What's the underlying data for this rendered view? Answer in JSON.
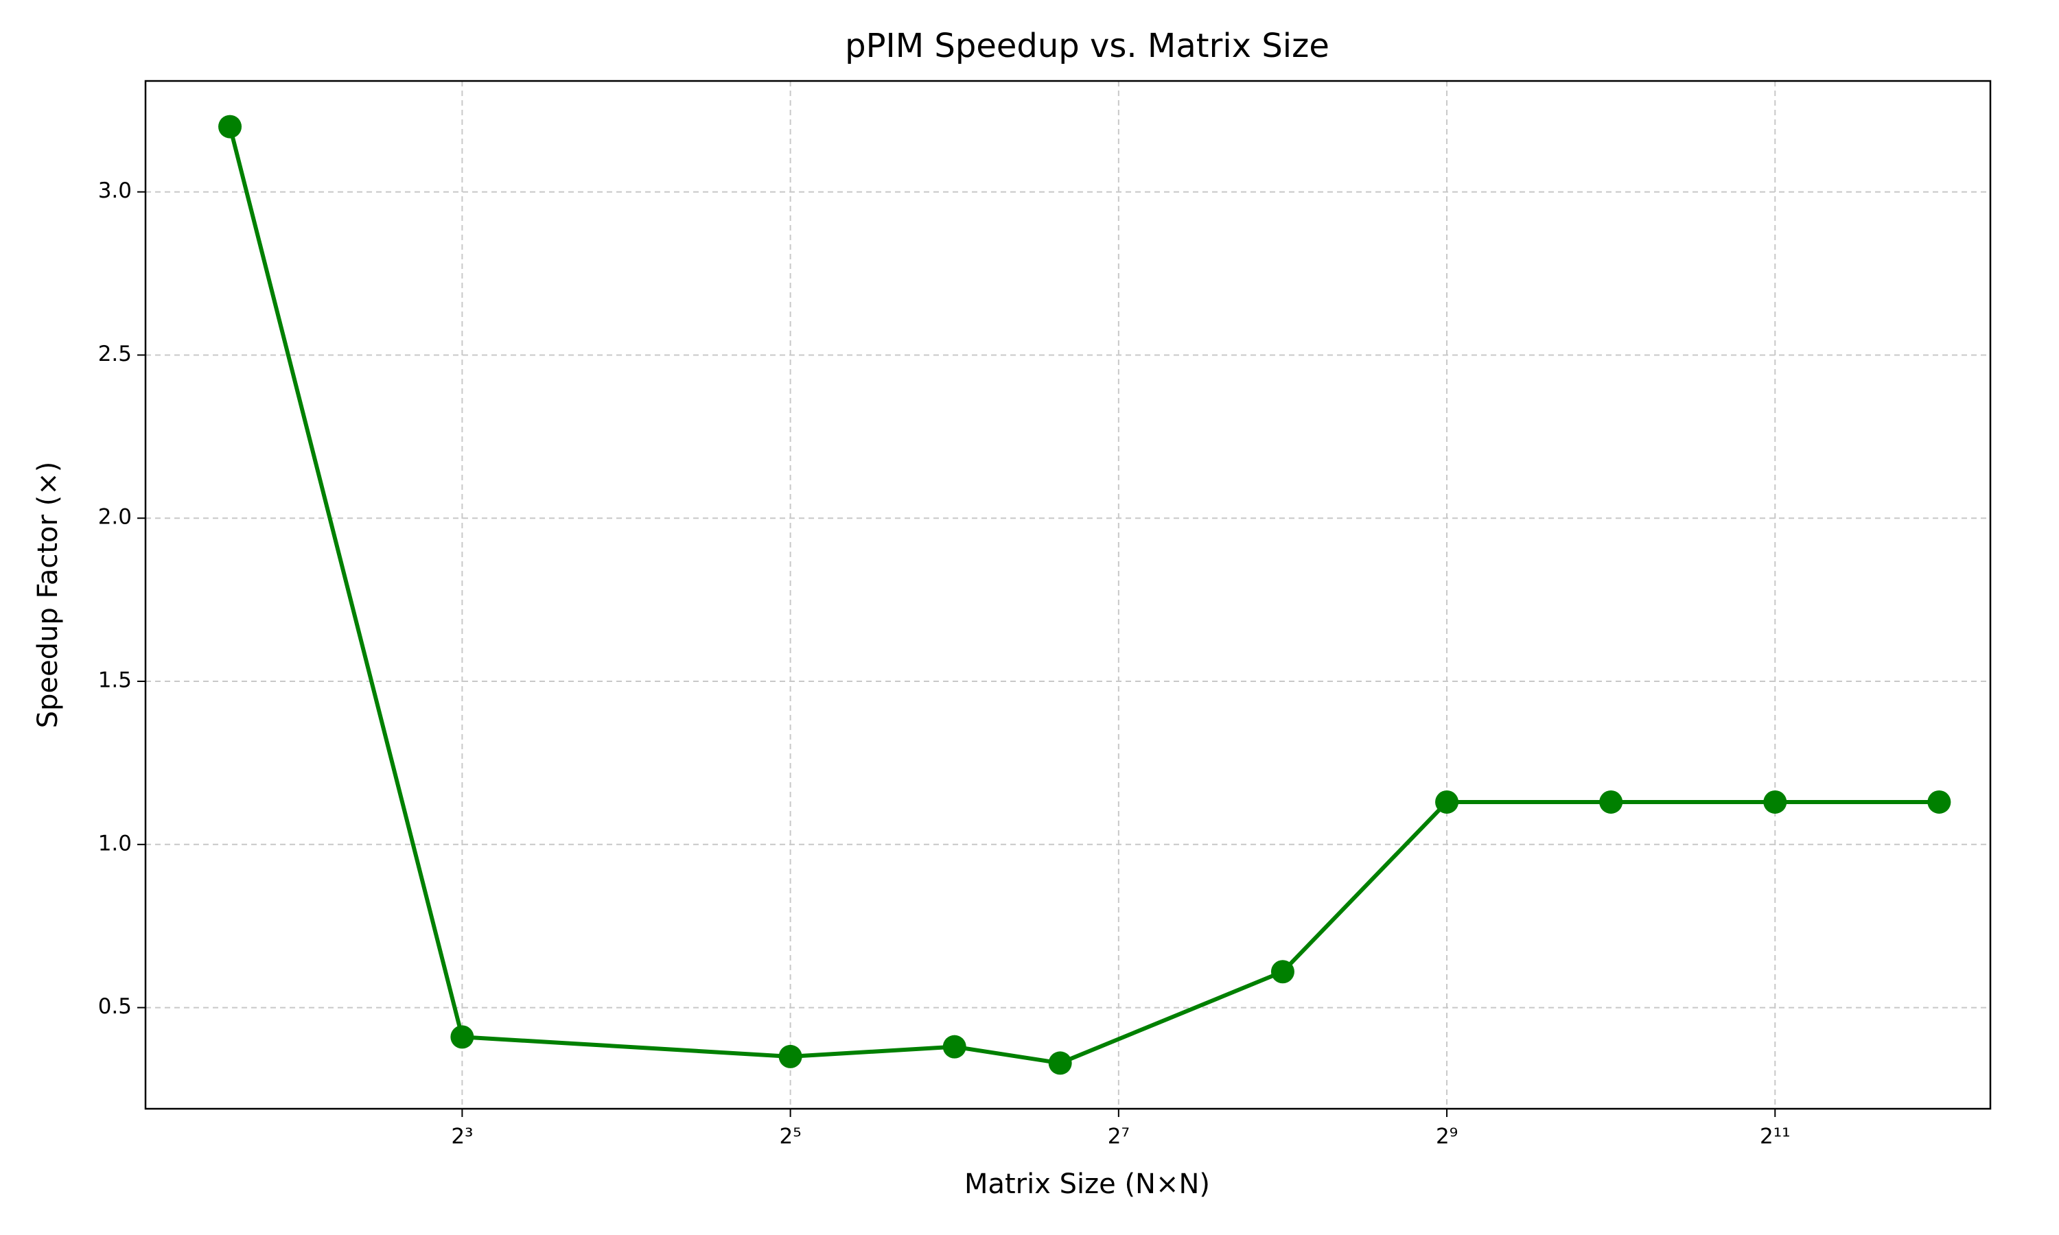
{
  "chart_data": {
    "type": "line",
    "title": "pPIM Speedup vs. Matrix Size",
    "xlabel": "Matrix Size (N×N)",
    "ylabel": "Speedup Factor (×)",
    "x": [
      3,
      8,
      32,
      64,
      100,
      256,
      512,
      1024,
      2048,
      4096
    ],
    "values": [
      3.2,
      0.41,
      0.35,
      0.38,
      0.33,
      0.61,
      1.13,
      1.13,
      1.13,
      1.13
    ],
    "color": "#008000",
    "xscale": "log",
    "xlim": [
      2.1,
      5085
    ],
    "ylim": [
      0.19,
      3.34
    ],
    "xticks": [
      {
        "value": 8,
        "label": "2³"
      },
      {
        "value": 32,
        "label": "2⁵"
      },
      {
        "value": 128,
        "label": "2⁷"
      },
      {
        "value": 512,
        "label": "2⁹"
      },
      {
        "value": 2048,
        "label": "2¹¹"
      }
    ],
    "yticks": [
      0.5,
      {
        "value": 1,
        "label": "1.0"
      },
      1.5,
      {
        "value": 2,
        "label": "2.0"
      },
      2.5,
      {
        "value": 3,
        "label": "3.0"
      }
    ],
    "grid": true
  }
}
